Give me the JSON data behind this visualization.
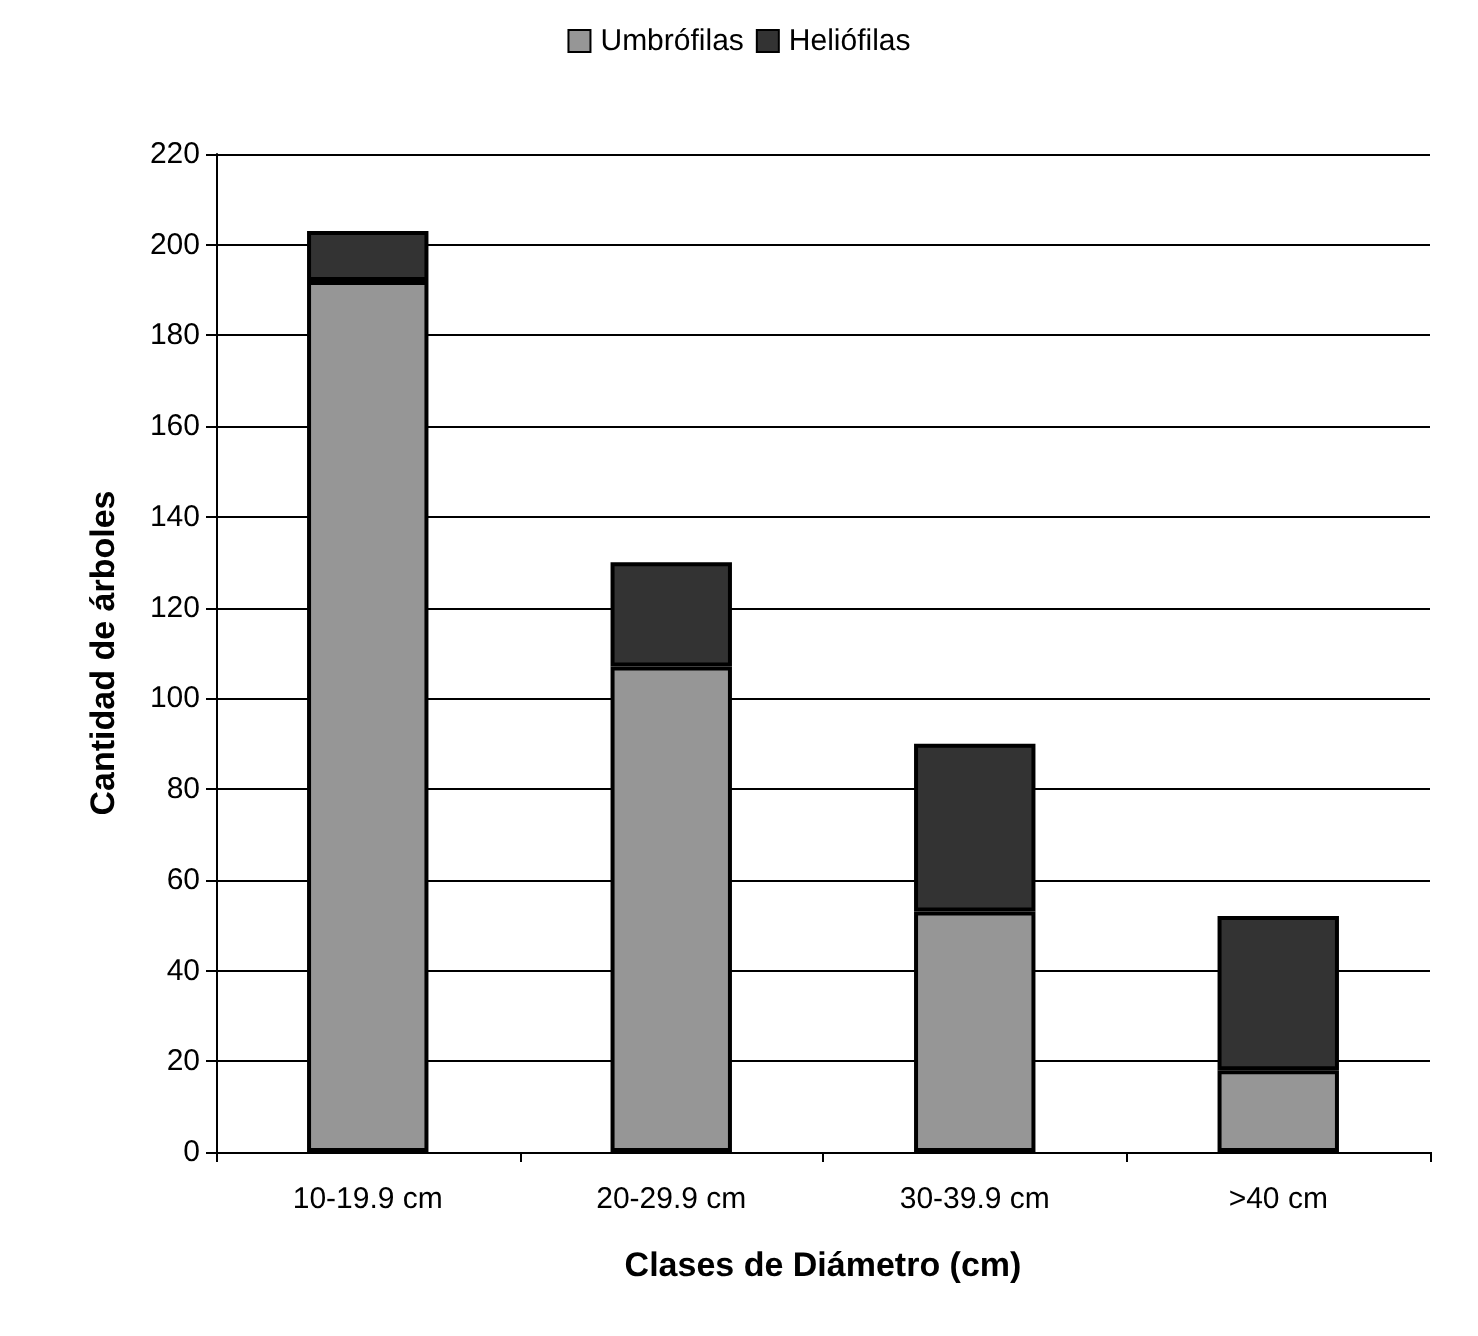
{
  "chart_data": {
    "type": "bar",
    "stacked": true,
    "xlabel": "Clases de Diámetro (cm)",
    "ylabel": "Cantidad de árboles",
    "categories": [
      "10-19.9 cm",
      "20-29.9 cm",
      "30-39.9 cm",
      ">40 cm"
    ],
    "series": [
      {
        "name": "Umbrófilas",
        "color": "#969696",
        "values": [
          192,
          107,
          53,
          18
        ]
      },
      {
        "name": "Heliófilas",
        "color": "#333333",
        "values": [
          11,
          23,
          37,
          34
        ]
      }
    ],
    "ylim": [
      0,
      220
    ],
    "yticks": [
      0,
      20,
      40,
      60,
      80,
      100,
      120,
      140,
      160,
      180,
      200,
      220
    ],
    "grid": "y",
    "legend": "top"
  }
}
